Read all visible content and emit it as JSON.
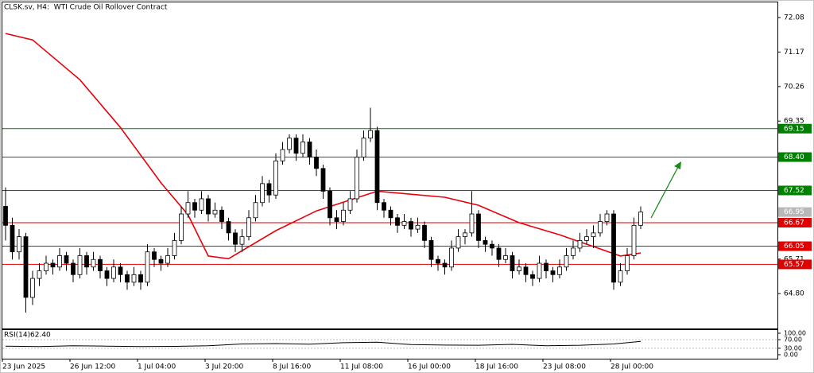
{
  "chart_data": {
    "type": "candlestick",
    "title": "CLSK.sv, H4:  WTI Crude Oil Rollover Contract",
    "x_labels": [
      "23 Jun 2025",
      "26 Jun 12:00",
      "1 Jul 04:00",
      "3 Jul 20:00",
      "8 Jul 16:00",
      "11 Jul 08:00",
      "16 Jul 00:00",
      "18 Jul 16:00",
      "23 Jul 08:00",
      "28 Jul 00:00"
    ],
    "open": [
      67.1,
      66.6,
      65.9,
      66.3,
      64.7,
      65.2,
      65.4,
      65.6,
      65.5,
      65.8,
      65.6,
      65.3,
      65.8,
      65.5,
      65.7,
      65.4,
      65.2,
      65.5,
      65.3,
      65.1,
      65.3,
      65.1,
      65.9,
      65.7,
      65.6,
      65.8,
      66.2,
      66.9,
      67.2,
      67.0,
      67.3,
      66.9,
      67.0,
      66.7,
      66.4,
      66.1,
      66.3,
      66.8,
      67.2,
      67.7,
      67.4,
      68.3,
      68.6,
      68.9,
      68.5,
      68.8,
      68.4,
      68.1,
      67.5,
      66.8,
      66.7,
      67.0,
      67.3,
      68.4,
      68.9,
      69.1,
      67.2,
      67.0,
      66.8,
      66.6,
      66.7,
      66.5,
      66.6,
      66.2,
      65.7,
      65.6,
      65.5,
      66.0,
      66.3,
      66.4,
      66.9,
      66.2,
      66.1,
      66.0,
      65.7,
      65.8,
      65.4,
      65.5,
      65.3,
      65.2,
      65.6,
      65.4,
      65.3,
      65.5,
      65.8,
      66.0,
      66.2,
      66.3,
      66.4,
      66.7,
      66.9,
      65.1,
      65.4,
      65.8,
      66.6
    ],
    "high": [
      67.6,
      66.8,
      66.5,
      66.4,
      65.4,
      65.6,
      65.8,
      65.7,
      66.0,
      65.9,
      65.7,
      66.0,
      65.9,
      65.9,
      65.8,
      65.5,
      65.7,
      65.6,
      65.4,
      65.5,
      65.4,
      66.1,
      66.0,
      65.8,
      66.0,
      66.4,
      67.1,
      67.5,
      67.3,
      67.5,
      67.4,
      67.2,
      67.1,
      66.8,
      66.5,
      66.5,
      67.0,
      67.4,
      67.9,
      67.8,
      68.5,
      68.8,
      69.0,
      69.0,
      69.0,
      68.9,
      68.6,
      68.2,
      67.6,
      67.0,
      67.2,
      67.5,
      68.6,
      69.1,
      69.7,
      69.2,
      67.3,
      67.1,
      66.9,
      66.9,
      66.8,
      66.8,
      66.7,
      66.3,
      65.8,
      65.7,
      66.2,
      66.5,
      66.5,
      67.5,
      67.0,
      66.3,
      66.2,
      66.1,
      66.0,
      65.9,
      65.7,
      65.6,
      65.4,
      65.8,
      65.7,
      65.5,
      65.7,
      66.0,
      66.2,
      66.4,
      66.5,
      66.6,
      66.9,
      67.0,
      67.0,
      65.6,
      66.0,
      66.8,
      67.1
    ],
    "low": [
      66.2,
      65.7,
      65.7,
      64.3,
      64.5,
      65.0,
      65.3,
      65.3,
      65.4,
      65.4,
      65.1,
      65.2,
      65.3,
      65.4,
      65.2,
      65.0,
      65.1,
      65.1,
      64.9,
      65.0,
      64.9,
      65.0,
      65.5,
      65.4,
      65.5,
      65.7,
      66.1,
      66.8,
      66.8,
      66.9,
      66.7,
      66.8,
      66.5,
      66.2,
      65.9,
      65.9,
      66.2,
      66.7,
      67.1,
      67.2,
      67.3,
      68.2,
      68.5,
      68.3,
      68.4,
      68.2,
      67.9,
      67.3,
      66.6,
      66.5,
      66.6,
      66.9,
      67.2,
      68.3,
      68.8,
      67.0,
      66.8,
      66.6,
      66.4,
      66.5,
      66.3,
      66.4,
      66.0,
      65.5,
      65.4,
      65.3,
      65.4,
      65.9,
      66.1,
      66.3,
      66.0,
      65.9,
      65.8,
      65.5,
      65.6,
      65.2,
      65.3,
      65.1,
      65.0,
      65.1,
      65.2,
      65.1,
      65.2,
      65.4,
      65.7,
      65.9,
      66.1,
      66.0,
      66.3,
      66.6,
      64.9,
      65.0,
      65.3,
      65.7,
      66.5
    ],
    "close": [
      66.6,
      65.9,
      66.3,
      64.7,
      65.2,
      65.4,
      65.6,
      65.5,
      65.8,
      65.6,
      65.3,
      65.8,
      65.5,
      65.7,
      65.4,
      65.2,
      65.5,
      65.3,
      65.1,
      65.3,
      65.1,
      65.9,
      65.7,
      65.6,
      65.8,
      66.2,
      66.9,
      67.2,
      67.0,
      67.3,
      66.9,
      67.0,
      66.7,
      66.4,
      66.1,
      66.3,
      66.8,
      67.2,
      67.7,
      67.4,
      68.3,
      68.6,
      68.9,
      68.5,
      68.8,
      68.4,
      68.1,
      67.5,
      66.8,
      66.7,
      67.0,
      67.3,
      68.4,
      68.9,
      69.1,
      67.2,
      67.0,
      66.8,
      66.6,
      66.7,
      66.5,
      66.6,
      66.2,
      65.7,
      65.6,
      65.5,
      66.0,
      66.3,
      66.4,
      66.9,
      66.2,
      66.1,
      66.0,
      65.7,
      65.8,
      65.4,
      65.5,
      65.3,
      65.2,
      65.6,
      65.4,
      65.3,
      65.5,
      65.8,
      66.0,
      66.2,
      66.3,
      66.4,
      66.7,
      66.9,
      65.1,
      65.4,
      65.8,
      66.6,
      66.95
    ],
    "up_color": "#ffffff",
    "down_color": "#000000",
    "ylim": [
      63.88,
      72.48
    ],
    "yticks": [
      72.08,
      71.17,
      70.26,
      69.35,
      65.71,
      {
        "value": 64.8,
        "label": "64.80"
      }
    ],
    "moving_average": {
      "color": "#e8000b",
      "bar": [
        0,
        4,
        11,
        17,
        23,
        27,
        30,
        33,
        40,
        46,
        55,
        65,
        70,
        76,
        82,
        87,
        91,
        94
      ],
      "values": [
        71.66,
        71.49,
        70.44,
        69.18,
        67.72,
        66.88,
        65.79,
        65.72,
        66.46,
        66.98,
        67.5,
        67.34,
        67.13,
        66.67,
        66.35,
        66.04,
        65.79,
        65.87
      ]
    },
    "levels": [
      {
        "value": 69.15,
        "color": "#008000"
      },
      {
        "value": 68.4,
        "label": "68.40",
        "color": "#008000"
      },
      {
        "value": 67.52,
        "color": "#008000"
      },
      {
        "value": 66.67,
        "color": "#e00000"
      },
      {
        "value": 66.05,
        "color": "#e00000"
      },
      {
        "value": 65.57,
        "color": "#e00000"
      }
    ],
    "last_price": {
      "value": 66.95,
      "color": "#b8b8b8"
    },
    "rsi": {
      "name": "RSI(14)",
      "value": 62.4,
      "value_label": "62.40",
      "color": "#000000",
      "ylim": [
        0,
        100
      ],
      "yticks": [
        {
          "value": 100,
          "label": "100.00"
        },
        {
          "value": 70,
          "label": "70.00"
        },
        {
          "value": 30,
          "label": "30.00"
        },
        {
          "value": 0,
          "label": "0.00"
        }
      ],
      "bar": [
        0,
        5,
        10,
        15,
        20,
        25,
        30,
        35,
        40,
        45,
        50,
        55,
        60,
        65,
        70,
        75,
        80,
        85,
        90,
        94
      ],
      "values": [
        40,
        38,
        42,
        40,
        38,
        39,
        42,
        50,
        52,
        49,
        56,
        58,
        47,
        45,
        44,
        48,
        42,
        44,
        50,
        62.4
      ]
    }
  }
}
